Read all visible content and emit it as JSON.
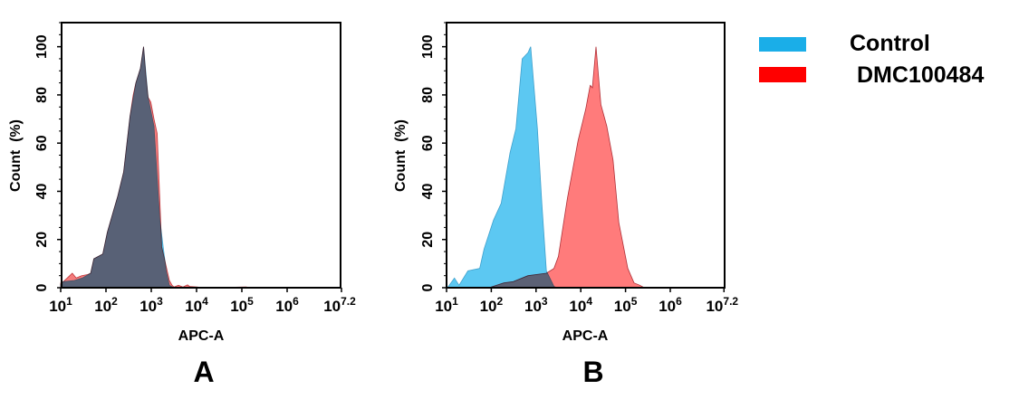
{
  "legend": {
    "items": [
      {
        "label": "Control",
        "color": "#1aaee8"
      },
      {
        "label": "DMC100484",
        "color": "#ff0000"
      }
    ]
  },
  "chart_data": [
    {
      "type": "area",
      "panel_label": "A",
      "xlabel": "APC-A",
      "ylabel": "Count  (%)",
      "xscale": "log",
      "xlim": [
        10,
        15848932
      ],
      "ylim": [
        0,
        110
      ],
      "x_tick_base": "10",
      "x_tick_exponents": [
        "1",
        "2",
        "3",
        "4",
        "5",
        "6",
        "7.2"
      ],
      "y_ticks": [
        "0",
        "20",
        "40",
        "60",
        "80",
        "100"
      ],
      "grid": false,
      "series": [
        {
          "name": "DMC100484",
          "fill": "#f47c7c",
          "stroke": "#c0353a",
          "points": [
            [
              10,
              2
            ],
            [
              11.5,
              2.5
            ],
            [
              18,
              6
            ],
            [
              22,
              4
            ],
            [
              29,
              5
            ],
            [
              40,
              5.5
            ],
            [
              46,
              6
            ],
            [
              54,
              12
            ],
            [
              85,
              14
            ],
            [
              107,
              23
            ],
            [
              182,
              38
            ],
            [
              245,
              48
            ],
            [
              339,
              71
            ],
            [
              400,
              80
            ],
            [
              457,
              85
            ],
            [
              575,
              91
            ],
            [
              676,
              100
            ],
            [
              760,
              88
            ],
            [
              851,
              79
            ],
            [
              977,
              77
            ],
            [
              1148,
              70
            ],
            [
              1349,
              64
            ],
            [
              1698,
              17
            ],
            [
              2512,
              3
            ],
            [
              2884,
              1
            ],
            [
              3162,
              0.3
            ],
            [
              3981,
              1
            ],
            [
              5012,
              0.3
            ],
            [
              6310,
              1.2
            ],
            [
              7079,
              0.5
            ],
            [
              10000,
              0.3
            ],
            [
              15000,
              0
            ],
            [
              125000,
              0.3
            ],
            [
              150000,
              0
            ]
          ]
        },
        {
          "name": "Control",
          "fill": "#5cc8f2",
          "stroke": "#4aa8d0",
          "points": [
            [
              10,
              1.5
            ],
            [
              11.5,
              2.5
            ],
            [
              20,
              3
            ],
            [
              30,
              4
            ],
            [
              46,
              6
            ],
            [
              54,
              12
            ],
            [
              85,
              14
            ],
            [
              107,
              23
            ],
            [
              182,
              38
            ],
            [
              245,
              48
            ],
            [
              339,
              71
            ],
            [
              457,
              85
            ],
            [
              575,
              91
            ],
            [
              676,
              100
            ],
            [
              851,
              79
            ],
            [
              1148,
              67
            ],
            [
              1549,
              28
            ],
            [
              2138,
              7
            ],
            [
              2512,
              1
            ],
            [
              3162,
              0
            ]
          ]
        }
      ]
    },
    {
      "type": "area",
      "panel_label": "B",
      "xlabel": "APC-A",
      "ylabel": "Count  (%)",
      "xscale": "log",
      "xlim": [
        10,
        15848932
      ],
      "ylim": [
        0,
        110
      ],
      "x_tick_base": "10",
      "x_tick_exponents": [
        "1",
        "2",
        "3",
        "4",
        "5",
        "6",
        "7.2"
      ],
      "y_ticks": [
        "0",
        "20",
        "40",
        "60",
        "80",
        "100"
      ],
      "grid": false,
      "series": [
        {
          "name": "DMC100484",
          "fill": "#ff7b7b",
          "stroke": "#b03038",
          "points": [
            [
              89,
              0
            ],
            [
              191,
              2
            ],
            [
              309,
              2.5
            ],
            [
              661,
              5
            ],
            [
              1698,
              6
            ],
            [
              2512,
              8
            ],
            [
              3162,
              13
            ],
            [
              5012,
              37
            ],
            [
              8710,
              61
            ],
            [
              12882,
              74
            ],
            [
              16218,
              84
            ],
            [
              18197,
              83
            ],
            [
              21878,
              100
            ],
            [
              28184,
              76
            ],
            [
              38019,
              67
            ],
            [
              52481,
              53
            ],
            [
              70795,
              27
            ],
            [
              112202,
              8
            ],
            [
              154882,
              2
            ],
            [
              208930,
              1
            ],
            [
              263027,
              0
            ]
          ]
        },
        {
          "name": "Control",
          "fill": "#5cc8f2",
          "stroke": "#3fa0cc",
          "points": [
            [
              10,
              0
            ],
            [
              11,
              0.5
            ],
            [
              15,
              4
            ],
            [
              19,
              1
            ],
            [
              30,
              7
            ],
            [
              55,
              8
            ],
            [
              69,
              16
            ],
            [
              112,
              28
            ],
            [
              166,
              35
            ],
            [
              263,
              56
            ],
            [
              355,
              66
            ],
            [
              490,
              95
            ],
            [
              661,
              97.5
            ],
            [
              759,
              100
            ],
            [
              1072,
              66
            ],
            [
              1349,
              35
            ],
            [
              1698,
              7
            ],
            [
              2512,
              0.5
            ],
            [
              3000,
              0
            ]
          ]
        }
      ]
    }
  ]
}
